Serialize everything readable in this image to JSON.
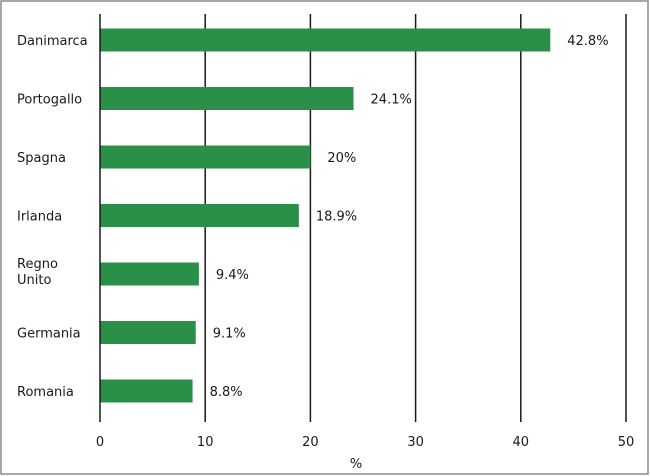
{
  "chart_data": {
    "type": "bar",
    "orientation": "horizontal",
    "categories": [
      "Danimarca",
      "Portogallo",
      "Spagna",
      "Irlanda",
      "Regno Unito",
      "Germania",
      "Romania"
    ],
    "category_lines": [
      [
        "Danimarca"
      ],
      [
        "Portogallo"
      ],
      [
        "Spagna"
      ],
      [
        "Irlanda"
      ],
      [
        "Regno",
        "Unito"
      ],
      [
        "Germania"
      ],
      [
        "Romania"
      ]
    ],
    "values": [
      42.8,
      24.1,
      20,
      18.9,
      9.4,
      9.1,
      8.8
    ],
    "value_labels": [
      "42.8%",
      "24.1%",
      "20%",
      "18.9%",
      "9.4%",
      "9.1%",
      "8.8%"
    ],
    "xlabel": "%",
    "xlim": [
      0,
      50
    ],
    "xticks": [
      0,
      10,
      20,
      30,
      40,
      50
    ],
    "grid": "vertical",
    "bar_color": "#2a8f47",
    "frame_color": "#8a8a8a"
  }
}
